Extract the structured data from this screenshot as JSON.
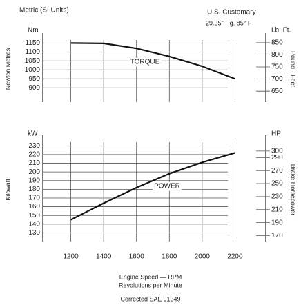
{
  "header": {
    "left": "Metric (SI Units)",
    "right": "U.S. Customary",
    "conditions": "29.35\" Hg. 85° F"
  },
  "chart_data": [
    {
      "type": "line",
      "ylabel": "Newton Metres",
      "y_unit": "Nm",
      "y2label": "Pound - Feet",
      "y2_unit": "Lb. Ft.",
      "label": "TORQUE",
      "color": "#111111",
      "x": [
        1200,
        1400,
        1600,
        1800,
        2000,
        2200
      ],
      "series": [
        {
          "values": [
            1150,
            1148,
            1120,
            1075,
            1020,
            950
          ]
        }
      ],
      "xlim": [
        1000,
        2400
      ],
      "ylim": [
        820,
        1190
      ],
      "yticks": [
        900,
        950,
        1000,
        1050,
        1100,
        1150
      ],
      "y2lim": [
        605,
        878
      ],
      "y2ticks": [
        650,
        700,
        750,
        800,
        850
      ],
      "grid": true
    },
    {
      "type": "line",
      "ylabel": "Kilowatt",
      "y_unit": "kW",
      "y2label": "Brake Horsepower",
      "y2_unit": "HP",
      "label": "POWER",
      "color": "#111111",
      "x": [
        1200,
        1400,
        1600,
        1800,
        2000,
        2200
      ],
      "series": [
        {
          "values": [
            145,
            164,
            182,
            198,
            211,
            222
          ]
        }
      ],
      "xlim": [
        1000,
        2400
      ],
      "xticks": [
        1200,
        1400,
        1600,
        1800,
        2000,
        2200
      ],
      "ylim": [
        120,
        239
      ],
      "yticks": [
        130,
        140,
        150,
        160,
        170,
        180,
        190,
        200,
        210,
        220,
        230
      ],
      "y2lim": [
        161,
        320
      ],
      "y2ticks": [
        170,
        190,
        210,
        230,
        250,
        270,
        290,
        300
      ],
      "grid": true,
      "xlabel": [
        "Engine Speed — RPM",
        "Revolutions per Minute"
      ],
      "note": "Corrected SAE J1349"
    }
  ]
}
